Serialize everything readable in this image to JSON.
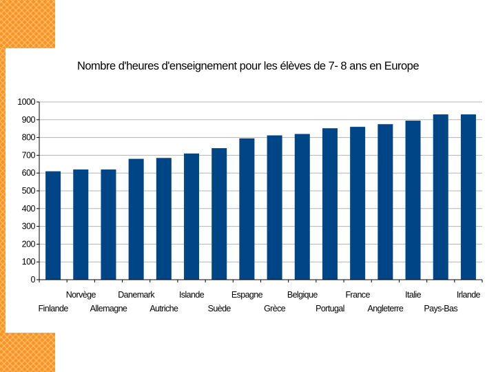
{
  "colors": {
    "accent": "#f7931e",
    "bar": "#004586",
    "grid": "#b3b3b3",
    "axis": "#000000"
  },
  "chart_data": {
    "type": "bar",
    "title": "Nombre d'heures d'enseignement pour les élèves de 7- 8 ans en Europe",
    "xlabel": "",
    "ylabel": "",
    "ylim": [
      0,
      1000
    ],
    "yticks": [
      "0",
      "100",
      "200",
      "300",
      "400",
      "500",
      "600",
      "700",
      "800",
      "900",
      "1000"
    ],
    "grid": true,
    "legend": "none",
    "categories": [
      "Finlande",
      "Norvège",
      "Allemagne",
      "Danemark",
      "Autriche",
      "Islande",
      "Suède",
      "Espagne",
      "Grèce",
      "Belgique",
      "Portugal",
      "France",
      "Angleterre",
      "Italie",
      "Pays-Bas",
      "Irlande"
    ],
    "values": [
      610,
      620,
      620,
      680,
      685,
      710,
      740,
      795,
      812,
      820,
      852,
      860,
      875,
      895,
      930,
      930
    ]
  }
}
